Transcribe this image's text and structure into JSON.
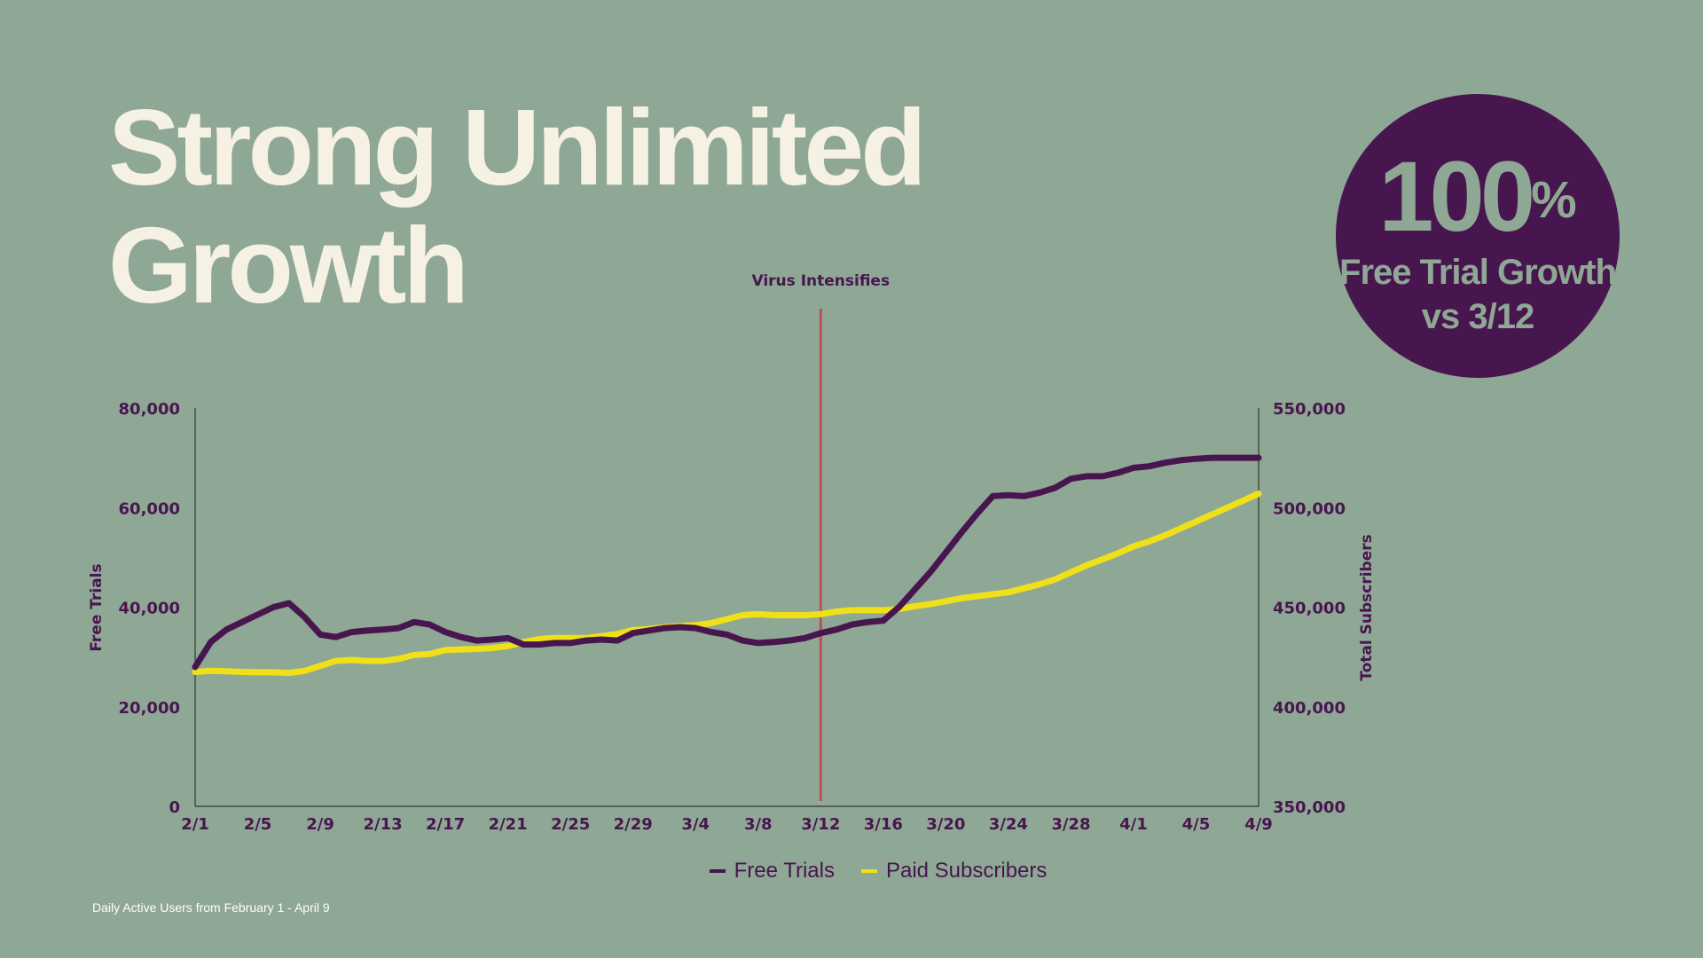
{
  "title": "Strong Unlimited\nGrowth",
  "badge": {
    "value": "100",
    "unit": "%",
    "line1": "Free Trial Growth",
    "line2": "vs 3/12"
  },
  "footnote": "Daily Active Users from February 1  - April 9",
  "colors": {
    "background": "#8fa795",
    "purple": "#48164f",
    "yellow": "#f0e019",
    "marker": "#c0504d",
    "title": "#f5f1e3"
  },
  "chart_data": {
    "type": "line",
    "xlabel": "",
    "ylabel": "Free Trials",
    "y2label": "Total Subscribers",
    "ylim": [
      0,
      80000
    ],
    "y2lim": [
      350000,
      550000
    ],
    "yticks": [
      "0",
      "20,000",
      "40,000",
      "60,000",
      "80,000"
    ],
    "y2ticks": [
      "350,000",
      "400,000",
      "450,000",
      "500,000",
      "550,000"
    ],
    "xticks": [
      "2/1",
      "2/5",
      "2/9",
      "2/13",
      "2/17",
      "2/21",
      "2/25",
      "2/29",
      "3/4",
      "3/8",
      "3/12",
      "3/16",
      "3/20",
      "3/24",
      "3/28",
      "4/1",
      "4/5",
      "4/9"
    ],
    "legend_position": "bottom",
    "annotation": {
      "label": "Virus Intensifies",
      "x": "3/12"
    },
    "series": [
      {
        "name": "Free Trials",
        "axis": "left",
        "color": "#48164f",
        "points": [
          [
            "2/1",
            28000
          ],
          [
            "2/2",
            33000
          ],
          [
            "2/3",
            35500
          ],
          [
            "2/4",
            37000
          ],
          [
            "2/5",
            38500
          ],
          [
            "2/6",
            40000
          ],
          [
            "2/7",
            40800
          ],
          [
            "2/8",
            38000
          ],
          [
            "2/9",
            34500
          ],
          [
            "2/10",
            34000
          ],
          [
            "2/11",
            35000
          ],
          [
            "2/12",
            35300
          ],
          [
            "2/13",
            35500
          ],
          [
            "2/14",
            35800
          ],
          [
            "2/15",
            37000
          ],
          [
            "2/16",
            36500
          ],
          [
            "2/17",
            35000
          ],
          [
            "2/18",
            34000
          ],
          [
            "2/19",
            33300
          ],
          [
            "2/20",
            33500
          ],
          [
            "2/21",
            33800
          ],
          [
            "2/22",
            32500
          ],
          [
            "2/23",
            32500
          ],
          [
            "2/24",
            32800
          ],
          [
            "2/25",
            32800
          ],
          [
            "2/26",
            33300
          ],
          [
            "2/27",
            33500
          ],
          [
            "2/28",
            33300
          ],
          [
            "2/29",
            34800
          ],
          [
            "3/1",
            35300
          ],
          [
            "3/2",
            35800
          ],
          [
            "3/3",
            36000
          ],
          [
            "3/4",
            35800
          ],
          [
            "3/5",
            35000
          ],
          [
            "3/6",
            34500
          ],
          [
            "3/7",
            33300
          ],
          [
            "3/8",
            32800
          ],
          [
            "3/9",
            33000
          ],
          [
            "3/10",
            33300
          ],
          [
            "3/11",
            33800
          ],
          [
            "3/12",
            34800
          ],
          [
            "3/13",
            35500
          ],
          [
            "3/14",
            36500
          ],
          [
            "3/15",
            37000
          ],
          [
            "3/16",
            37300
          ],
          [
            "3/17",
            40000
          ],
          [
            "3/18",
            43500
          ],
          [
            "3/19",
            47000
          ],
          [
            "3/20",
            51000
          ],
          [
            "3/21",
            55000
          ],
          [
            "3/22",
            58800
          ],
          [
            "3/23",
            62300
          ],
          [
            "3/24",
            62500
          ],
          [
            "3/25",
            62300
          ],
          [
            "3/26",
            63000
          ],
          [
            "3/27",
            64000
          ],
          [
            "3/28",
            65800
          ],
          [
            "3/29",
            66300
          ],
          [
            "3/30",
            66300
          ],
          [
            "3/31",
            67000
          ],
          [
            "4/1",
            68000
          ],
          [
            "4/2",
            68300
          ],
          [
            "4/3",
            69000
          ],
          [
            "4/4",
            69500
          ],
          [
            "4/5",
            69800
          ],
          [
            "4/6",
            70000
          ],
          [
            "4/7",
            70000
          ],
          [
            "4/8",
            70000
          ],
          [
            "4/9",
            70000
          ]
        ]
      },
      {
        "name": "Paid Subscribers",
        "axis": "right",
        "color": "#f0e019",
        "points": [
          [
            "2/1",
            417500
          ],
          [
            "2/2",
            418000
          ],
          [
            "2/3",
            417800
          ],
          [
            "2/4",
            417500
          ],
          [
            "2/5",
            417300
          ],
          [
            "2/6",
            417300
          ],
          [
            "2/7",
            417000
          ],
          [
            "2/8",
            418000
          ],
          [
            "2/9",
            420500
          ],
          [
            "2/10",
            423000
          ],
          [
            "2/11",
            423500
          ],
          [
            "2/12",
            423000
          ],
          [
            "2/13",
            423000
          ],
          [
            "2/14",
            424000
          ],
          [
            "2/15",
            426000
          ],
          [
            "2/16",
            426500
          ],
          [
            "2/17",
            428500
          ],
          [
            "2/18",
            428800
          ],
          [
            "2/19",
            429000
          ],
          [
            "2/20",
            429500
          ],
          [
            "2/21",
            430500
          ],
          [
            "2/22",
            432500
          ],
          [
            "2/23",
            434000
          ],
          [
            "2/24",
            434500
          ],
          [
            "2/25",
            434500
          ],
          [
            "2/26",
            434500
          ],
          [
            "2/27",
            435500
          ],
          [
            "2/28",
            436500
          ],
          [
            "2/29",
            438500
          ],
          [
            "3/1",
            439000
          ],
          [
            "3/2",
            440000
          ],
          [
            "3/3",
            440500
          ],
          [
            "3/4",
            441000
          ],
          [
            "3/5",
            442000
          ],
          [
            "3/6",
            444000
          ],
          [
            "3/7",
            446000
          ],
          [
            "3/8",
            446500
          ],
          [
            "3/9",
            446000
          ],
          [
            "3/10",
            446000
          ],
          [
            "3/11",
            446000
          ],
          [
            "3/12",
            446500
          ],
          [
            "3/13",
            447800
          ],
          [
            "3/14",
            448500
          ],
          [
            "3/15",
            448500
          ],
          [
            "3/16",
            448500
          ],
          [
            "3/17",
            449000
          ],
          [
            "3/18",
            450500
          ],
          [
            "3/19",
            451500
          ],
          [
            "3/20",
            453000
          ],
          [
            "3/21",
            454500
          ],
          [
            "3/22",
            455500
          ],
          [
            "3/23",
            456500
          ],
          [
            "3/24",
            457500
          ],
          [
            "3/25",
            459500
          ],
          [
            "3/26",
            461500
          ],
          [
            "3/27",
            464000
          ],
          [
            "3/28",
            467500
          ],
          [
            "3/29",
            471000
          ],
          [
            "3/30",
            474000
          ],
          [
            "3/31",
            477000
          ],
          [
            "4/1",
            480500
          ],
          [
            "4/2",
            483000
          ],
          [
            "4/3",
            486000
          ],
          [
            "4/4",
            489500
          ],
          [
            "4/5",
            493000
          ],
          [
            "4/6",
            496500
          ],
          [
            "4/7",
            500000
          ],
          [
            "4/8",
            503500
          ],
          [
            "4/9",
            507000
          ]
        ]
      }
    ]
  }
}
